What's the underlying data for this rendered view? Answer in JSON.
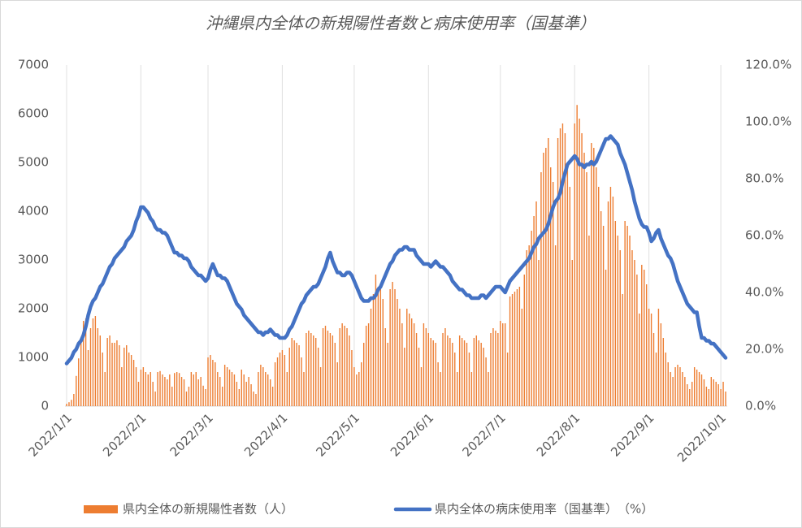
{
  "chart_data": {
    "type": "bar-line",
    "title": "沖縄県内全体の新規陽性者数と病床使用率（国基準）",
    "categories": [
      "2022/1/1",
      null,
      null,
      null,
      null,
      null,
      null,
      null,
      null,
      null,
      null,
      null,
      null,
      null,
      null,
      null,
      null,
      null,
      null,
      null,
      null,
      null,
      null,
      null,
      null,
      null,
      null,
      null,
      null,
      null,
      null,
      "2022/2/1",
      null,
      null,
      null,
      null,
      null,
      null,
      null,
      null,
      null,
      null,
      null,
      null,
      null,
      null,
      null,
      null,
      null,
      null,
      null,
      null,
      null,
      null,
      null,
      null,
      null,
      null,
      null,
      "2022/3/1",
      null,
      null,
      null,
      null,
      null,
      null,
      null,
      null,
      null,
      null,
      null,
      null,
      null,
      null,
      null,
      null,
      null,
      null,
      null,
      null,
      null,
      null,
      null,
      null,
      null,
      null,
      null,
      null,
      null,
      null,
      "2022/4/1",
      null,
      null,
      null,
      null,
      null,
      null,
      null,
      null,
      null,
      null,
      null,
      null,
      null,
      null,
      null,
      null,
      null,
      null,
      null,
      null,
      null,
      null,
      null,
      null,
      null,
      null,
      null,
      null,
      null,
      "2022/5/1",
      null,
      null,
      null,
      null,
      null,
      null,
      null,
      null,
      null,
      null,
      null,
      null,
      null,
      null,
      null,
      null,
      null,
      null,
      null,
      null,
      null,
      null,
      null,
      null,
      null,
      null,
      null,
      null,
      null,
      null,
      "2022/6/1",
      null,
      null,
      null,
      null,
      null,
      null,
      null,
      null,
      null,
      null,
      null,
      null,
      null,
      null,
      null,
      null,
      null,
      null,
      null,
      null,
      null,
      null,
      null,
      null,
      null,
      null,
      null,
      null,
      null,
      "2022/7/1",
      null,
      null,
      null,
      null,
      null,
      null,
      null,
      null,
      null,
      null,
      null,
      null,
      null,
      null,
      null,
      null,
      null,
      null,
      null,
      null,
      null,
      null,
      null,
      null,
      null,
      null,
      null,
      null,
      null,
      null,
      "2022/8/1",
      null,
      null,
      null,
      null,
      null,
      null,
      null,
      null,
      null,
      null,
      null,
      null,
      null,
      null,
      null,
      null,
      null,
      null,
      null,
      null,
      null,
      null,
      null,
      null,
      null,
      null,
      null,
      null,
      null,
      null,
      "2022/9/1",
      null,
      null,
      null,
      null,
      null,
      null,
      null,
      null,
      null,
      null,
      null,
      null,
      null,
      null,
      null,
      null,
      null,
      null,
      null,
      null,
      null,
      null,
      null,
      null,
      null,
      null,
      null,
      null,
      null,
      "2022/10/1",
      null,
      null
    ],
    "series": [
      {
        "name": "県内全体の新規陽性者数（人）",
        "type": "bar",
        "color": "#ed7d31",
        "values": [
          50,
          80,
          130,
          250,
          620,
          980,
          1400,
          1750,
          1800,
          1150,
          1600,
          1800,
          1850,
          1600,
          1450,
          1100,
          700,
          1400,
          1450,
          1300,
          1300,
          1350,
          1250,
          800,
          1200,
          1250,
          1100,
          1050,
          950,
          800,
          500,
          750,
          800,
          700,
          650,
          700,
          500,
          300,
          700,
          720,
          650,
          600,
          550,
          650,
          400,
          680,
          700,
          680,
          600,
          550,
          300,
          400,
          700,
          650,
          700,
          550,
          600,
          420,
          350,
          1000,
          1050,
          950,
          900,
          700,
          600,
          400,
          850,
          800,
          750,
          700,
          650,
          500,
          350,
          750,
          650,
          500,
          600,
          450,
          300,
          250,
          700,
          850,
          800,
          700,
          650,
          550,
          400,
          900,
          1000,
          1100,
          1150,
          1050,
          700,
          1200,
          1400,
          1350,
          1300,
          1250,
          1000,
          700,
          1500,
          1550,
          1500,
          1450,
          1400,
          1200,
          800,
          1600,
          1650,
          1550,
          1500,
          1450,
          1300,
          900,
          1600,
          1700,
          1650,
          1600,
          1450,
          1150,
          800,
          650,
          700,
          900,
          1300,
          1650,
          1700,
          2000,
          2300,
          2700,
          2450,
          2400,
          2200,
          1600,
          1300,
          2400,
          2550,
          2400,
          2200,
          2000,
          1700,
          1200,
          2000,
          1900,
          1800,
          1700,
          1500,
          1200,
          800,
          1700,
          1600,
          1500,
          1400,
          1350,
          1300,
          900,
          700,
          1500,
          1600,
          1450,
          1400,
          1300,
          1100,
          700,
          1450,
          1400,
          1350,
          1300,
          1100,
          700,
          1400,
          1450,
          1350,
          1300,
          1200,
          1000,
          700,
          1500,
          1600,
          1550,
          1500,
          1750,
          1700,
          1700,
          1100,
          2250,
          2300,
          2350,
          2400,
          2450,
          2000,
          2700,
          3200,
          3300,
          3600,
          3900,
          4200,
          3000,
          4800,
          5200,
          5300,
          5500,
          4900,
          4600,
          3300,
          5500,
          5700,
          5800,
          5600,
          4900,
          4500,
          3000,
          5800,
          6180,
          5900,
          5600,
          5200,
          4800,
          3500,
          5400,
          5300,
          4900,
          4500,
          4000,
          3700,
          2800,
          4200,
          4500,
          4300,
          3800,
          3500,
          3200,
          2300,
          3800,
          3700,
          3500,
          3200,
          3000,
          2700,
          1900,
          2900,
          2800,
          2500,
          2000,
          1900,
          1500,
          1100,
          2000,
          1700,
          1400,
          1100,
          900,
          700,
          600,
          800,
          850,
          800,
          700,
          600,
          450,
          350,
          500,
          800,
          750,
          700,
          650,
          550,
          400,
          350,
          600,
          550,
          500,
          450,
          350,
          500,
          300
        ]
      },
      {
        "name": "県内全体の病床使用率（国基準）　（%）",
        "type": "line",
        "axis": "y2",
        "color": "#4472c4",
        "values": [
          15,
          16,
          17,
          19,
          20,
          22,
          23,
          25,
          28,
          32,
          35,
          37,
          38,
          40,
          42,
          43,
          45,
          47,
          49,
          50,
          52,
          53,
          54,
          55,
          56,
          58,
          59,
          60,
          62,
          65,
          67,
          70,
          70,
          69,
          68,
          66,
          65,
          63,
          62,
          62,
          61,
          61,
          60,
          58,
          56,
          54,
          54,
          53,
          53,
          52,
          52,
          51,
          49,
          48,
          47,
          46,
          46,
          45,
          44,
          45,
          48,
          50,
          48,
          46,
          46,
          45,
          45,
          44,
          42,
          40,
          38,
          36,
          35,
          34,
          32,
          31,
          30,
          29,
          28,
          27,
          26,
          26,
          25,
          26,
          26,
          27,
          26,
          25,
          25,
          24,
          24,
          24,
          25,
          27,
          28,
          30,
          32,
          34,
          36,
          37,
          39,
          40,
          41,
          42,
          42,
          43,
          45,
          47,
          49,
          52,
          54,
          51,
          49,
          47,
          47,
          46,
          46,
          47,
          47,
          46,
          44,
          42,
          40,
          38,
          37,
          37,
          37,
          38,
          38,
          39,
          41,
          42,
          44,
          46,
          48,
          50,
          51,
          53,
          54,
          55,
          55,
          56,
          56,
          55,
          55,
          55,
          53,
          52,
          51,
          50,
          50,
          50,
          49,
          50,
          51,
          50,
          49,
          49,
          48,
          47,
          46,
          44,
          43,
          42,
          41,
          41,
          40,
          39,
          39,
          38,
          38,
          38,
          38,
          39,
          39,
          38,
          39,
          40,
          41,
          42,
          42,
          42,
          41,
          40,
          42,
          44,
          45,
          46,
          47,
          48,
          49,
          50,
          51,
          52,
          54,
          56,
          57,
          59,
          60,
          61,
          62,
          64,
          67,
          70,
          72,
          73,
          75,
          79,
          82,
          85,
          86,
          87,
          88,
          87,
          85,
          85,
          84,
          85,
          85,
          86,
          85,
          86,
          88,
          90,
          92,
          94,
          94,
          95,
          94,
          93,
          92,
          89,
          87,
          85,
          82,
          79,
          76,
          72,
          69,
          66,
          64,
          63,
          63,
          61,
          58,
          59,
          61,
          62,
          59,
          57,
          55,
          53,
          52,
          50,
          47,
          44,
          42,
          40,
          38,
          36,
          35,
          34,
          33,
          33,
          28,
          24,
          24,
          23,
          23,
          22,
          22,
          21,
          20,
          19,
          18,
          17
        ]
      }
    ],
    "ylim": [
      0,
      7000
    ],
    "yticks": [
      0,
      1000,
      2000,
      3000,
      4000,
      5000,
      6000,
      7000
    ],
    "y2lim": [
      0,
      120
    ],
    "y2ticks": [
      {
        "value": 0,
        "label": "0.0%"
      },
      {
        "value": 20,
        "label": "20.0%"
      },
      {
        "value": 40,
        "label": "40.0%"
      },
      {
        "value": 60,
        "label": "60.0%"
      },
      {
        "value": 80,
        "label": "80.0%"
      },
      {
        "value": 100,
        "label": "100.0%"
      },
      {
        "value": 120,
        "label": "120.0%"
      }
    ],
    "grid": "x",
    "legend": "bottom"
  }
}
